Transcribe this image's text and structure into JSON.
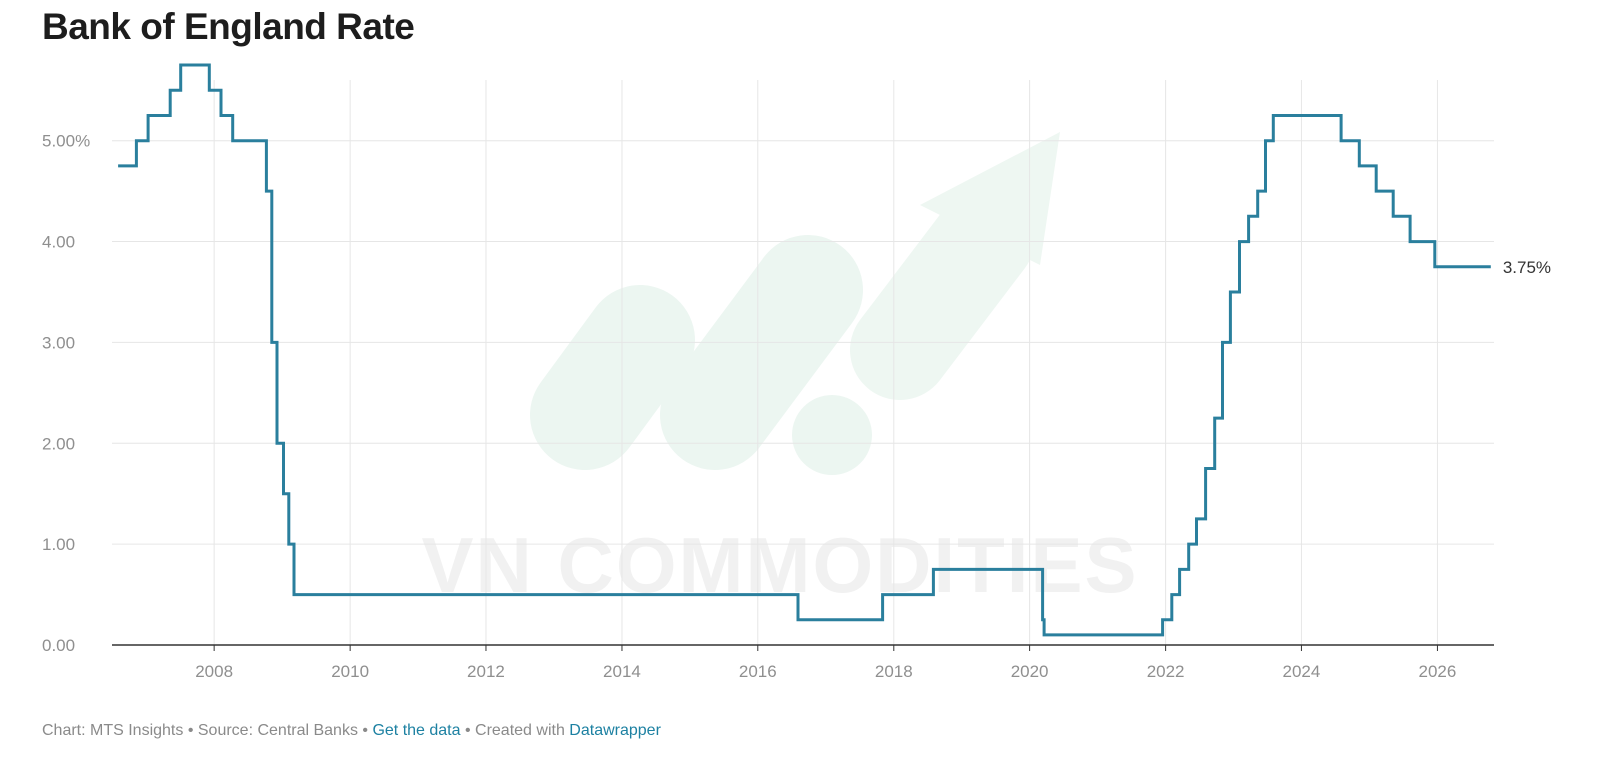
{
  "watermark": {
    "text": "VN COMMODITIES"
  },
  "footer": {
    "credit": "Chart: MTS Insights",
    "separator": " • ",
    "source": "Source: Central Banks",
    "get_data": "Get the data",
    "created_with": "Created with",
    "datawrapper": "Datawrapper"
  },
  "colors": {
    "line": "#2a7f9d",
    "grid": "#e6e6e6",
    "axis": "#333333",
    "link": "#1d81a2"
  },
  "chart_data": {
    "type": "line",
    "title": "Bank of England Rate",
    "xlabel": "",
    "ylabel": "",
    "x_type": "date",
    "xlim": [
      "2006-07-01",
      "2026-11-01"
    ],
    "ylim": [
      0,
      5.8
    ],
    "x_ticks": [
      "2008",
      "2010",
      "2012",
      "2014",
      "2016",
      "2018",
      "2020",
      "2022",
      "2024",
      "2026"
    ],
    "y_ticks": [
      0,
      1,
      2,
      3,
      4,
      5
    ],
    "y_tick_labels": [
      "0.00",
      "1.00",
      "2.00",
      "3.00",
      "4.00",
      "5.00%"
    ],
    "grid": true,
    "end_label": "3.75%",
    "series": [
      {
        "step": "after",
        "x": [
          "2006-08-03",
          "2006-11-09",
          "2007-01-11",
          "2007-05-10",
          "2007-07-05",
          "2007-12-06",
          "2008-02-07",
          "2008-04-10",
          "2008-10-08",
          "2008-11-06",
          "2008-12-04",
          "2009-01-08",
          "2009-02-05",
          "2009-03-05",
          "2016-08-04",
          "2017-11-02",
          "2018-08-02",
          "2020-03-11",
          "2020-03-19",
          "2021-12-16",
          "2022-02-03",
          "2022-03-17",
          "2022-05-05",
          "2022-06-16",
          "2022-08-04",
          "2022-09-22",
          "2022-11-03",
          "2022-12-15",
          "2023-02-02",
          "2023-03-23",
          "2023-05-11",
          "2023-06-22",
          "2023-08-03",
          "2024-08-01",
          "2024-11-07",
          "2025-02-06",
          "2025-05-08",
          "2025-08-07",
          "2025-12-18",
          "2026-10-15"
        ],
        "y": [
          4.75,
          5.0,
          5.25,
          5.5,
          5.75,
          5.5,
          5.25,
          5.0,
          4.5,
          3.0,
          2.0,
          1.5,
          1.0,
          0.5,
          0.25,
          0.5,
          0.75,
          0.25,
          0.1,
          0.25,
          0.5,
          0.75,
          1.0,
          1.25,
          1.75,
          2.25,
          3.0,
          3.5,
          4.0,
          4.25,
          4.5,
          5.0,
          5.25,
          5.0,
          4.75,
          4.5,
          4.25,
          4.0,
          3.75,
          3.75
        ]
      }
    ]
  }
}
